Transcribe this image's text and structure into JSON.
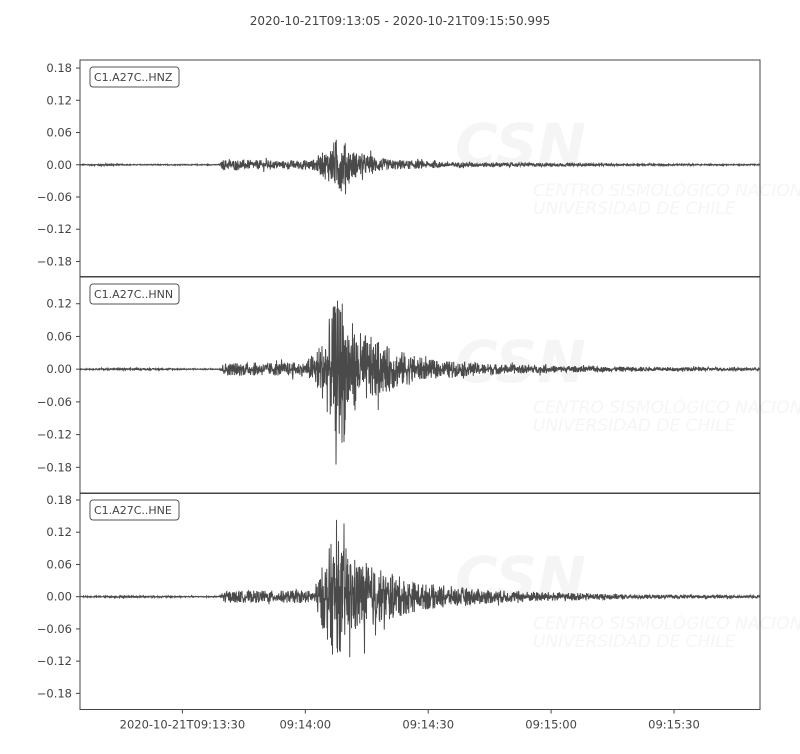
{
  "chart_data": {
    "type": "line",
    "title": "2020-10-21T09:13:05  -  2020-10-21T09:15:50.995",
    "start_time": "09:13:05",
    "end_time": "09:15:50.995",
    "x_ticks": [
      {
        "time": "09:13:30",
        "label": "2020-10-21T09:13:30"
      },
      {
        "time": "09:14:00",
        "label": "09:14:00"
      },
      {
        "time": "09:14:30",
        "label": "09:14:30"
      },
      {
        "time": "09:15:00",
        "label": "09:15:00"
      },
      {
        "time": "09:15:30",
        "label": "09:15:30"
      }
    ],
    "line_color": "#4a4a4a",
    "grid": false,
    "watermark": [
      "CSN",
      "CENTRO SISMOLÓGICO NACIONAL",
      "UNIVERSIDAD DE CHILE"
    ],
    "panels": [
      {
        "label": "C1.A27C..HNZ",
        "ylim": [
          -0.208,
          0.195
        ],
        "y_ticks": [
          "0.18",
          "0.12",
          "0.06",
          "0.00",
          "−0.06",
          "−0.12",
          "−0.18"
        ],
        "y_tick_values": [
          0.18,
          0.12,
          0.06,
          0,
          -0.06,
          -0.12,
          -0.18
        ],
        "envelope": [
          [
            "09:13:05",
            0.0008
          ],
          [
            "09:13:12",
            0.003
          ],
          [
            "09:13:15",
            0.001
          ],
          [
            "09:13:39",
            0.001
          ],
          [
            "09:13:40",
            0.012
          ],
          [
            "09:13:55",
            0.009
          ],
          [
            "09:14:02",
            0.012
          ],
          [
            "09:14:06",
            0.04
          ],
          [
            "09:14:08",
            0.065
          ],
          [
            "09:14:12",
            0.03
          ],
          [
            "09:14:20",
            0.012
          ],
          [
            "09:14:35",
            0.006
          ],
          [
            "09:15:00",
            0.004
          ],
          [
            "09:15:20",
            0.002
          ],
          [
            "09:15:51",
            0.0012
          ]
        ]
      },
      {
        "label": "C1.A27C..HNN",
        "ylim": [
          -0.228,
          0.169
        ],
        "y_ticks": [
          "0.12",
          "0.06",
          "0.00",
          "−0.06",
          "−0.12",
          "−0.18"
        ],
        "y_tick_values": [
          0.12,
          0.06,
          0,
          -0.06,
          -0.12,
          -0.18
        ],
        "envelope": [
          [
            "09:13:05",
            0.001
          ],
          [
            "09:13:15",
            0.002
          ],
          [
            "09:13:39",
            0.001
          ],
          [
            "09:13:40",
            0.014
          ],
          [
            "09:14:00",
            0.015
          ],
          [
            "09:14:04",
            0.06
          ],
          [
            "09:14:07",
            0.14
          ],
          [
            "09:14:09",
            0.17
          ],
          [
            "09:14:12",
            0.09
          ],
          [
            "09:14:20",
            0.05
          ],
          [
            "09:14:30",
            0.02
          ],
          [
            "09:14:50",
            0.01
          ],
          [
            "09:15:10",
            0.006
          ],
          [
            "09:15:51",
            0.003
          ]
        ]
      },
      {
        "label": "C1.A27C..HNE",
        "ylim": [
          -0.21,
          0.193
        ],
        "y_ticks": [
          "0.18",
          "0.12",
          "0.06",
          "0.00",
          "−0.06",
          "−0.12",
          "−0.18"
        ],
        "y_tick_values": [
          0.18,
          0.12,
          0.06,
          0,
          -0.06,
          -0.12,
          -0.18
        ],
        "envelope": [
          [
            "09:13:05",
            0.001
          ],
          [
            "09:13:15",
            0.002
          ],
          [
            "09:13:39",
            0.001
          ],
          [
            "09:13:40",
            0.013
          ],
          [
            "09:14:02",
            0.014
          ],
          [
            "09:14:05",
            0.09
          ],
          [
            "09:14:07",
            0.135
          ],
          [
            "09:14:12",
            0.09
          ],
          [
            "09:14:18",
            0.06
          ],
          [
            "09:14:28",
            0.03
          ],
          [
            "09:14:45",
            0.015
          ],
          [
            "09:15:00",
            0.01
          ],
          [
            "09:15:20",
            0.005
          ],
          [
            "09:15:51",
            0.003
          ]
        ]
      }
    ]
  }
}
